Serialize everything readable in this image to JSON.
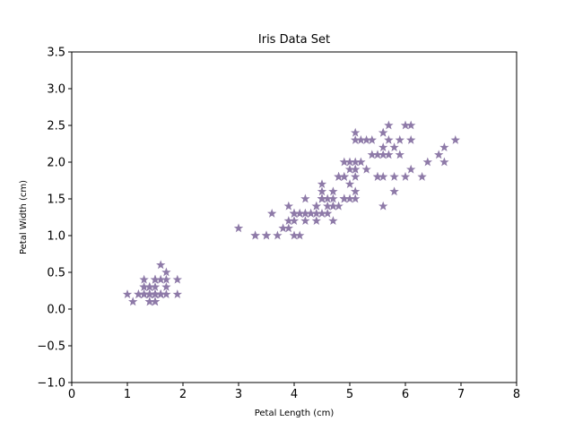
{
  "chart_data": {
    "type": "scatter",
    "title": "Iris Data Set",
    "xlabel": "Petal Length (cm)",
    "ylabel": "Petal Width (cm)",
    "xlim": [
      0,
      8
    ],
    "ylim": [
      -1.0,
      3.5
    ],
    "x_ticks": [
      "0",
      "1",
      "2",
      "3",
      "4",
      "5",
      "6",
      "7",
      "8"
    ],
    "y_ticks": [
      "−1.0",
      "−0.5",
      "0.0",
      "0.5",
      "1.0",
      "1.5",
      "2.0",
      "2.5",
      "3.0",
      "3.5"
    ],
    "grid": false,
    "legend": false,
    "marker": "star",
    "marker_color": "#8e7aa8",
    "points": [
      [
        1.4,
        0.2
      ],
      [
        1.4,
        0.2
      ],
      [
        1.3,
        0.2
      ],
      [
        1.5,
        0.2
      ],
      [
        1.4,
        0.2
      ],
      [
        1.7,
        0.4
      ],
      [
        1.4,
        0.3
      ],
      [
        1.5,
        0.2
      ],
      [
        1.4,
        0.2
      ],
      [
        1.5,
        0.1
      ],
      [
        1.5,
        0.2
      ],
      [
        1.6,
        0.2
      ],
      [
        1.4,
        0.1
      ],
      [
        1.1,
        0.1
      ],
      [
        1.2,
        0.2
      ],
      [
        1.5,
        0.4
      ],
      [
        1.3,
        0.4
      ],
      [
        1.4,
        0.3
      ],
      [
        1.7,
        0.3
      ],
      [
        1.5,
        0.3
      ],
      [
        1.7,
        0.2
      ],
      [
        1.5,
        0.4
      ],
      [
        1.0,
        0.2
      ],
      [
        1.7,
        0.5
      ],
      [
        1.9,
        0.2
      ],
      [
        1.6,
        0.2
      ],
      [
        1.6,
        0.4
      ],
      [
        1.5,
        0.2
      ],
      [
        1.4,
        0.2
      ],
      [
        1.6,
        0.2
      ],
      [
        1.6,
        0.2
      ],
      [
        1.5,
        0.4
      ],
      [
        1.5,
        0.1
      ],
      [
        1.4,
        0.2
      ],
      [
        1.5,
        0.2
      ],
      [
        1.2,
        0.2
      ],
      [
        1.3,
        0.2
      ],
      [
        1.4,
        0.1
      ],
      [
        1.3,
        0.2
      ],
      [
        1.5,
        0.2
      ],
      [
        1.3,
        0.3
      ],
      [
        1.3,
        0.3
      ],
      [
        1.3,
        0.2
      ],
      [
        1.6,
        0.6
      ],
      [
        1.9,
        0.4
      ],
      [
        1.4,
        0.3
      ],
      [
        1.6,
        0.2
      ],
      [
        1.4,
        0.2
      ],
      [
        1.5,
        0.2
      ],
      [
        1.4,
        0.2
      ],
      [
        4.7,
        1.4
      ],
      [
        4.5,
        1.5
      ],
      [
        4.9,
        1.5
      ],
      [
        4.0,
        1.3
      ],
      [
        4.6,
        1.5
      ],
      [
        4.5,
        1.3
      ],
      [
        4.7,
        1.6
      ],
      [
        3.3,
        1.0
      ],
      [
        4.6,
        1.3
      ],
      [
        3.9,
        1.4
      ],
      [
        3.5,
        1.0
      ],
      [
        4.2,
        1.5
      ],
      [
        4.0,
        1.0
      ],
      [
        4.7,
        1.4
      ],
      [
        3.6,
        1.3
      ],
      [
        4.4,
        1.4
      ],
      [
        4.5,
        1.5
      ],
      [
        4.1,
        1.0
      ],
      [
        4.5,
        1.5
      ],
      [
        3.9,
        1.1
      ],
      [
        4.8,
        1.8
      ],
      [
        4.0,
        1.3
      ],
      [
        4.9,
        1.5
      ],
      [
        4.7,
        1.2
      ],
      [
        4.3,
        1.3
      ],
      [
        4.4,
        1.4
      ],
      [
        4.8,
        1.4
      ],
      [
        5.0,
        1.7
      ],
      [
        4.5,
        1.5
      ],
      [
        3.5,
        1.0
      ],
      [
        3.8,
        1.1
      ],
      [
        3.7,
        1.0
      ],
      [
        3.9,
        1.2
      ],
      [
        5.1,
        1.6
      ],
      [
        4.5,
        1.5
      ],
      [
        4.5,
        1.6
      ],
      [
        4.7,
        1.5
      ],
      [
        4.4,
        1.3
      ],
      [
        4.1,
        1.3
      ],
      [
        4.0,
        1.3
      ],
      [
        4.4,
        1.2
      ],
      [
        4.6,
        1.4
      ],
      [
        4.0,
        1.2
      ],
      [
        3.3,
        1.0
      ],
      [
        4.2,
        1.3
      ],
      [
        4.2,
        1.2
      ],
      [
        4.2,
        1.3
      ],
      [
        4.3,
        1.3
      ],
      [
        3.0,
        1.1
      ],
      [
        4.1,
        1.3
      ],
      [
        6.0,
        2.5
      ],
      [
        5.1,
        1.9
      ],
      [
        5.9,
        2.1
      ],
      [
        5.6,
        1.8
      ],
      [
        5.8,
        2.2
      ],
      [
        6.6,
        2.1
      ],
      [
        4.5,
        1.7
      ],
      [
        6.3,
        1.8
      ],
      [
        5.8,
        1.8
      ],
      [
        6.1,
        2.5
      ],
      [
        5.1,
        2.0
      ],
      [
        5.3,
        1.9
      ],
      [
        5.5,
        2.1
      ],
      [
        5.0,
        2.0
      ],
      [
        5.1,
        2.4
      ],
      [
        5.3,
        2.3
      ],
      [
        5.5,
        1.8
      ],
      [
        6.7,
        2.2
      ],
      [
        6.9,
        2.3
      ],
      [
        5.0,
        1.5
      ],
      [
        5.7,
        2.3
      ],
      [
        4.9,
        2.0
      ],
      [
        6.7,
        2.0
      ],
      [
        4.9,
        1.8
      ],
      [
        5.7,
        2.1
      ],
      [
        6.0,
        1.8
      ],
      [
        4.8,
        1.8
      ],
      [
        4.9,
        1.8
      ],
      [
        5.6,
        2.1
      ],
      [
        5.8,
        1.6
      ],
      [
        6.1,
        1.9
      ],
      [
        6.4,
        2.0
      ],
      [
        5.6,
        2.2
      ],
      [
        5.1,
        1.5
      ],
      [
        5.6,
        1.4
      ],
      [
        6.1,
        2.3
      ],
      [
        5.6,
        2.4
      ],
      [
        5.5,
        1.8
      ],
      [
        4.8,
        1.8
      ],
      [
        5.4,
        2.1
      ],
      [
        5.6,
        2.4
      ],
      [
        5.1,
        2.3
      ],
      [
        5.1,
        1.9
      ],
      [
        5.9,
        2.3
      ],
      [
        5.7,
        2.5
      ],
      [
        5.2,
        2.3
      ],
      [
        5.0,
        1.9
      ],
      [
        5.2,
        2.0
      ],
      [
        5.4,
        2.3
      ],
      [
        5.1,
        1.8
      ]
    ]
  }
}
